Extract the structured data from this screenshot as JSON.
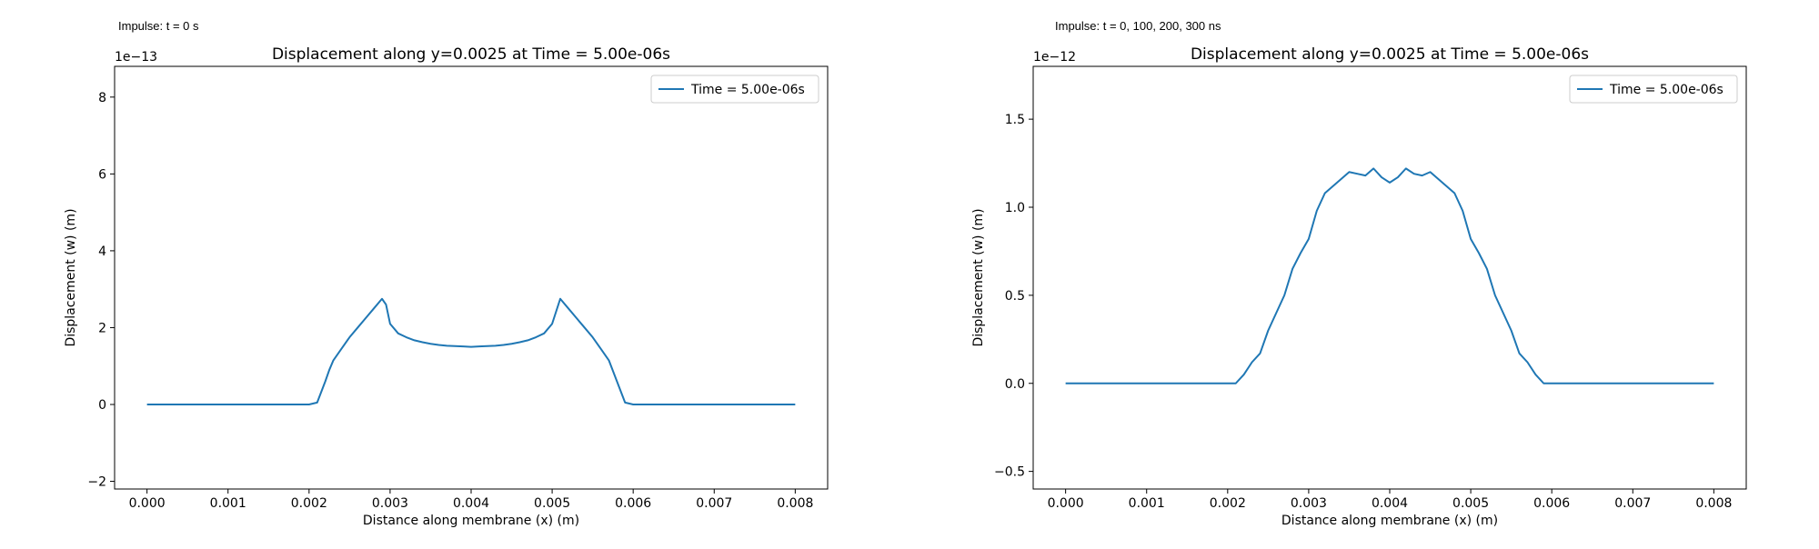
{
  "captions": {
    "left": "Impulse: t = 0 s",
    "right": "Impulse: t = 0, 100, 200, 300 ns"
  },
  "colors": {
    "line": "#1f77b4"
  },
  "chart_data": [
    {
      "type": "line",
      "title": "Displacement along y=0.0025 at Time = 5.00e-06s",
      "xlabel": "Distance along membrane (x) (m)",
      "ylabel": "Displacement (w) (m)",
      "offset_text": "1e−13",
      "y_scale": 1e-13,
      "xlim": [
        -0.0004,
        0.0084
      ],
      "ylim": [
        -2.2,
        8.8
      ],
      "xticks": [
        0.0,
        0.001,
        0.002,
        0.003,
        0.004,
        0.005,
        0.006,
        0.007,
        0.008
      ],
      "xtick_labels": [
        "0.000",
        "0.001",
        "0.002",
        "0.003",
        "0.004",
        "0.005",
        "0.006",
        "0.007",
        "0.008"
      ],
      "yticks": [
        -2,
        0,
        2,
        4,
        6,
        8
      ],
      "ytick_labels": [
        "−2",
        "0",
        "2",
        "4",
        "6",
        "8"
      ],
      "grid": false,
      "legend": "upper-right",
      "series": [
        {
          "name": "Time = 5.00e-06s",
          "x": [
            0.0,
            0.0005,
            0.001,
            0.0015,
            0.0018,
            0.002,
            0.0021,
            0.0022,
            0.00225,
            0.0023,
            0.0024,
            0.0025,
            0.0026,
            0.0027,
            0.0028,
            0.0029,
            0.00295,
            0.003,
            0.0031,
            0.0032,
            0.0033,
            0.0034,
            0.0035,
            0.0036,
            0.0037,
            0.0038,
            0.0039,
            0.004,
            0.0041,
            0.0042,
            0.0043,
            0.0044,
            0.0045,
            0.0046,
            0.0047,
            0.0048,
            0.0049,
            0.005,
            0.0051,
            0.0052,
            0.0053,
            0.0054,
            0.0055,
            0.0056,
            0.0057,
            0.0058,
            0.0059,
            0.006,
            0.0065,
            0.007,
            0.008
          ],
          "y": [
            0.0,
            0.0,
            0.0,
            0.0,
            0.0,
            0.0,
            0.05,
            0.6,
            0.9,
            1.15,
            1.45,
            1.75,
            2.0,
            2.25,
            2.5,
            2.75,
            2.6,
            2.1,
            1.85,
            1.75,
            1.67,
            1.62,
            1.58,
            1.55,
            1.53,
            1.52,
            1.51,
            1.5,
            1.51,
            1.52,
            1.53,
            1.55,
            1.58,
            1.62,
            1.67,
            1.75,
            1.85,
            2.1,
            2.75,
            2.5,
            2.25,
            2.0,
            1.75,
            1.45,
            1.15,
            0.6,
            0.05,
            0.0,
            0.0,
            0.0,
            0.0
          ]
        }
      ]
    },
    {
      "type": "line",
      "title": "Displacement along y=0.0025 at Time = 5.00e-06s",
      "xlabel": "Distance along membrane (x) (m)",
      "ylabel": "Displacement (w) (m)",
      "offset_text": "1e−12",
      "y_scale": 1e-12,
      "xlim": [
        -0.0004,
        0.0084
      ],
      "ylim": [
        -0.6,
        1.8
      ],
      "xticks": [
        0.0,
        0.001,
        0.002,
        0.003,
        0.004,
        0.005,
        0.006,
        0.007,
        0.008
      ],
      "xtick_labels": [
        "0.000",
        "0.001",
        "0.002",
        "0.003",
        "0.004",
        "0.005",
        "0.006",
        "0.007",
        "0.008"
      ],
      "yticks": [
        -0.5,
        0.0,
        0.5,
        1.0,
        1.5
      ],
      "ytick_labels": [
        "−0.5",
        "0.0",
        "0.5",
        "1.0",
        "1.5"
      ],
      "grid": false,
      "legend": "upper-right",
      "series": [
        {
          "name": "Time = 5.00e-06s",
          "x": [
            0.0,
            0.001,
            0.002,
            0.0021,
            0.0022,
            0.0023,
            0.0024,
            0.0025,
            0.0026,
            0.0027,
            0.0028,
            0.0029,
            0.003,
            0.0031,
            0.0032,
            0.0033,
            0.0034,
            0.0035,
            0.0036,
            0.0037,
            0.0038,
            0.0039,
            0.004,
            0.0041,
            0.0042,
            0.0043,
            0.0044,
            0.0045,
            0.0046,
            0.0047,
            0.0048,
            0.0049,
            0.005,
            0.0051,
            0.0052,
            0.0053,
            0.0054,
            0.0055,
            0.0056,
            0.0057,
            0.0058,
            0.0059,
            0.006,
            0.007,
            0.008
          ],
          "y": [
            0.0,
            0.0,
            0.0,
            0.0,
            0.05,
            0.12,
            0.17,
            0.3,
            0.4,
            0.5,
            0.65,
            0.74,
            0.82,
            0.98,
            1.08,
            1.12,
            1.16,
            1.2,
            1.19,
            1.18,
            1.22,
            1.17,
            1.14,
            1.17,
            1.22,
            1.19,
            1.18,
            1.2,
            1.16,
            1.12,
            1.08,
            0.98,
            0.82,
            0.74,
            0.65,
            0.5,
            0.4,
            0.3,
            0.17,
            0.12,
            0.05,
            0.0,
            0.0,
            0.0,
            0.0
          ]
        }
      ]
    }
  ]
}
